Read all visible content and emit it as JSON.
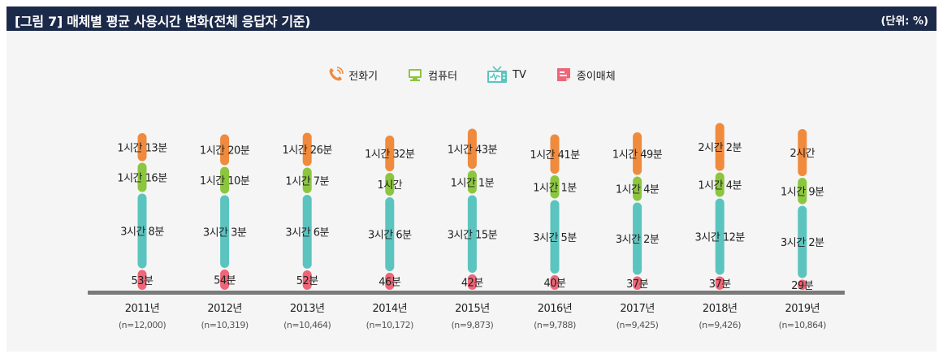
{
  "header": {
    "title": "[그림 7]  매체별 평균 사용시간 변화(전체 응답자 기준)",
    "unit": "(단위: %)"
  },
  "legend": [
    {
      "name": "전화기",
      "icon": "phone-icon",
      "color": "#f08a3c"
    },
    {
      "name": "컴퓨터",
      "icon": "computer-icon",
      "color": "#8cc63f"
    },
    {
      "name": "TV",
      "icon": "tv-icon",
      "color": "#5bc4bf"
    },
    {
      "name": "종이매체",
      "icon": "paper-media-icon",
      "color": "#ee6677"
    }
  ],
  "colors": {
    "phone": "#f08a3c",
    "computer": "#8cc63f",
    "tv": "#5bc4bf",
    "paper": "#ee6677",
    "header_bg": "#1c2a4a",
    "baseline": "#7a7a7a"
  },
  "chart_data": {
    "type": "bar",
    "stacked": true,
    "orientation": "vertical",
    "categories": [
      "2011년",
      "2012년",
      "2013년",
      "2014년",
      "2015년",
      "2016년",
      "2017년",
      "2018년",
      "2019년"
    ],
    "sample_sizes": [
      "(n=12,000)",
      "(n=10,319)",
      "(n=10,464)",
      "(n=10,172)",
      "(n=9,873)",
      "(n=9,788)",
      "(n=9,425)",
      "(n=9,426)",
      "(n=10,864)"
    ],
    "unit": "분",
    "series": [
      {
        "name": "종이매체",
        "key": "paper",
        "values": [
          53,
          54,
          52,
          46,
          42,
          40,
          37,
          37,
          29
        ],
        "labels": [
          "53분",
          "54분",
          "52분",
          "46분",
          "42분",
          "40분",
          "37분",
          "37분",
          "29분"
        ]
      },
      {
        "name": "TV",
        "key": "tv",
        "values": [
          188,
          183,
          186,
          186,
          195,
          185,
          182,
          192,
          182
        ],
        "labels": [
          "3시간 8분",
          "3시간 3분",
          "3시간 6분",
          "3시간 6분",
          "3시간 15분",
          "3시간 5분",
          "3시간 2분",
          "3시간 12분",
          "3시간 2분"
        ]
      },
      {
        "name": "컴퓨터",
        "key": "computer",
        "values": [
          76,
          70,
          67,
          60,
          61,
          61,
          64,
          64,
          69
        ],
        "labels": [
          "1시간 16분",
          "1시간 10분",
          "1시간 7분",
          "1시간",
          "1시간 1분",
          "1시간 1분",
          "1시간 4분",
          "1시간 4분",
          "1시간 9분"
        ]
      },
      {
        "name": "전화기",
        "key": "phone",
        "values": [
          73,
          80,
          86,
          92,
          103,
          101,
          109,
          122,
          120
        ],
        "labels": [
          "1시간 13분",
          "1시간 20분",
          "1시간 26분",
          "1시간 32분",
          "1시간 43분",
          "1시간 41분",
          "1시간 49분",
          "2시간 2분",
          "2시간"
        ]
      }
    ],
    "legend_position": "top-center",
    "grid": false
  }
}
